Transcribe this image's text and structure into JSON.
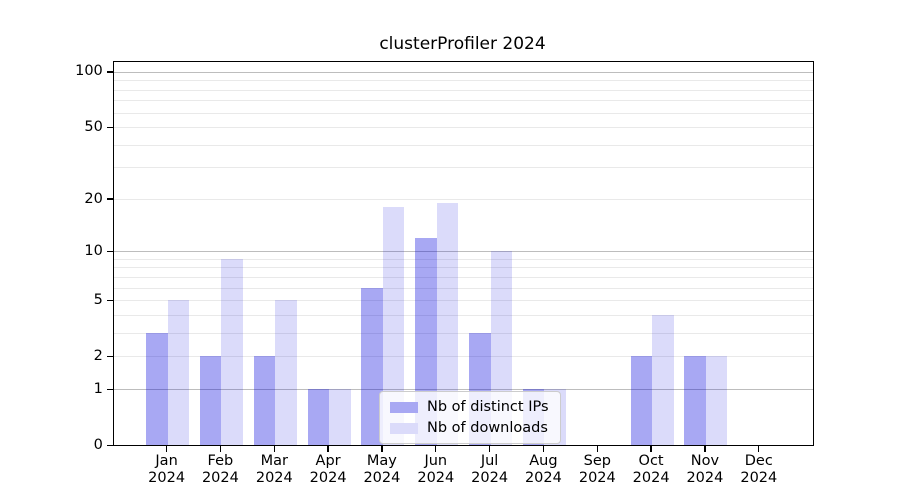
{
  "chart_data": {
    "type": "bar",
    "title": "clusterProfiler 2024",
    "yscale": "log1p",
    "ylim": [
      0,
      112
    ],
    "yticks": [
      0,
      1,
      2,
      5,
      10,
      20,
      50,
      100
    ],
    "major_gridlines": [
      1,
      10,
      100
    ],
    "minor_gridlines": [
      2,
      3,
      4,
      5,
      6,
      7,
      8,
      9,
      20,
      30,
      40,
      50,
      60,
      70,
      80,
      90
    ],
    "grid": "on",
    "legend_position": "lower center",
    "categories": [
      "Jan",
      "Feb",
      "Mar",
      "Apr",
      "May",
      "Jun",
      "Jul",
      "Aug",
      "Sep",
      "Oct",
      "Nov",
      "Dec"
    ],
    "category_year_line": "2024",
    "series": [
      {
        "name": "Nb of distinct IPs",
        "fill": "rgba(0,0,220,0.34)",
        "legend_hex": "#a8a8f3",
        "values": [
          3,
          2,
          2,
          1,
          6,
          12,
          3,
          1,
          0,
          2,
          2,
          0
        ]
      },
      {
        "name": "Nb of downloads",
        "fill": "rgba(0,0,220,0.14)",
        "legend_hex": "#dbdbfa",
        "values": [
          5,
          9,
          5,
          1,
          18,
          19,
          10,
          1,
          0,
          4,
          2,
          0
        ]
      }
    ]
  },
  "colors": {
    "major_grid": "#bdbdbd",
    "minor_grid": "#e9e9e9",
    "spine": "#000000",
    "legend_border": "#cccccc"
  }
}
